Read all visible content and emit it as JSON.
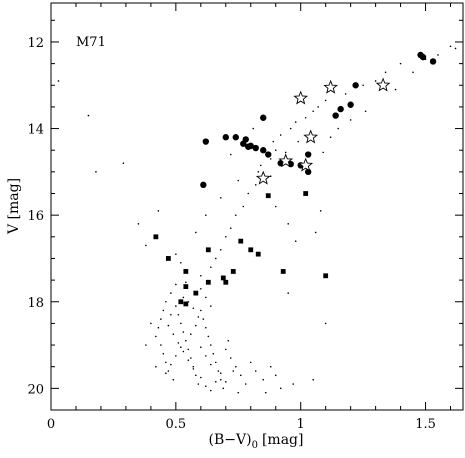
{
  "chart_data": {
    "type": "scatter",
    "title": "M71",
    "xlabel": "(B−V)",
    "xlabel_subscript": "0",
    "xlabel_unit": "[mag]",
    "ylabel": "V [mag]",
    "xlim": [
      0,
      1.65
    ],
    "ylim": [
      20.5,
      11.1
    ],
    "y_inverted": true,
    "grid": false,
    "x_ticks": [
      0,
      0.5,
      1,
      1.5
    ],
    "x_tick_labels": [
      "0",
      "0.5",
      "1",
      "1.5"
    ],
    "y_ticks": [
      12,
      14,
      16,
      18,
      20
    ],
    "y_tick_labels": [
      "12",
      "14",
      "16",
      "18",
      "20"
    ],
    "series": [
      {
        "marker": "circle",
        "points": [
          [
            1.48,
            12.3
          ],
          [
            1.49,
            12.35
          ],
          [
            1.53,
            12.45
          ],
          [
            1.22,
            13.0
          ],
          [
            1.2,
            13.45
          ],
          [
            1.16,
            13.55
          ],
          [
            1.14,
            13.7
          ],
          [
            0.85,
            13.75
          ],
          [
            0.62,
            14.3
          ],
          [
            0.7,
            14.2
          ],
          [
            0.74,
            14.2
          ],
          [
            0.77,
            14.35
          ],
          [
            0.78,
            14.25
          ],
          [
            0.79,
            14.42
          ],
          [
            0.8,
            14.4
          ],
          [
            0.82,
            14.45
          ],
          [
            0.85,
            14.5
          ],
          [
            0.87,
            14.6
          ],
          [
            0.92,
            14.8
          ],
          [
            0.96,
            14.82
          ],
          [
            1.0,
            14.85
          ],
          [
            1.03,
            14.6
          ],
          [
            1.03,
            15.0
          ],
          [
            0.61,
            15.3
          ]
        ]
      },
      {
        "marker": "star",
        "points": [
          [
            1.33,
            13.0
          ],
          [
            1.12,
            13.05
          ],
          [
            1.0,
            13.3
          ],
          [
            1.04,
            14.2
          ],
          [
            0.94,
            14.75
          ],
          [
            1.02,
            14.85
          ],
          [
            0.85,
            15.15
          ]
        ]
      },
      {
        "marker": "square",
        "points": [
          [
            1.02,
            15.5
          ],
          [
            0.87,
            15.55
          ],
          [
            0.42,
            16.5
          ],
          [
            0.76,
            16.6
          ],
          [
            0.63,
            16.8
          ],
          [
            0.8,
            16.8
          ],
          [
            0.83,
            16.9
          ],
          [
            0.47,
            17.0
          ],
          [
            0.54,
            17.3
          ],
          [
            0.93,
            17.3
          ],
          [
            0.73,
            17.3
          ],
          [
            1.1,
            17.4
          ],
          [
            0.69,
            17.45
          ],
          [
            0.63,
            17.55
          ],
          [
            0.7,
            17.55
          ],
          [
            0.54,
            17.65
          ],
          [
            0.58,
            17.8
          ],
          [
            0.52,
            18.0
          ],
          [
            0.54,
            18.05
          ]
        ]
      },
      {
        "marker": "dot",
        "points": [
          [
            0.03,
            12.9
          ],
          [
            0.15,
            13.7
          ],
          [
            0.18,
            15.0
          ],
          [
            0.29,
            14.8
          ],
          [
            1.6,
            12.1
          ],
          [
            1.62,
            12.15
          ],
          [
            1.4,
            12.5
          ],
          [
            1.34,
            12.7
          ],
          [
            1.3,
            12.9
          ],
          [
            1.25,
            13.0
          ],
          [
            1.18,
            13.2
          ],
          [
            1.1,
            13.35
          ],
          [
            1.07,
            13.5
          ],
          [
            1.05,
            13.6
          ],
          [
            1.02,
            13.75
          ],
          [
            0.98,
            13.85
          ],
          [
            0.96,
            14.0
          ],
          [
            0.92,
            14.15
          ],
          [
            0.89,
            14.3
          ],
          [
            0.9,
            14.5
          ],
          [
            0.94,
            14.55
          ],
          [
            0.88,
            14.7
          ],
          [
            0.84,
            14.85
          ],
          [
            0.83,
            15.0
          ],
          [
            0.88,
            15.1
          ],
          [
            0.82,
            15.3
          ],
          [
            0.79,
            15.5
          ],
          [
            0.77,
            15.8
          ],
          [
            0.74,
            16.0
          ],
          [
            0.72,
            16.3
          ],
          [
            0.7,
            16.5
          ],
          [
            0.68,
            16.8
          ],
          [
            0.66,
            17.0
          ],
          [
            0.64,
            17.2
          ],
          [
            0.6,
            17.4
          ],
          [
            0.9,
            15.8
          ],
          [
            0.95,
            16.2
          ],
          [
            1.08,
            15.9
          ],
          [
            0.98,
            16.6
          ],
          [
            1.06,
            16.4
          ],
          [
            0.43,
            15.9
          ],
          [
            0.38,
            16.7
          ],
          [
            0.5,
            16.9
          ],
          [
            0.52,
            17.1
          ],
          [
            0.58,
            16.4
          ],
          [
            0.62,
            16.0
          ],
          [
            0.68,
            15.6
          ],
          [
            0.75,
            15.2
          ],
          [
            1.12,
            14.2
          ],
          [
            1.15,
            14.0
          ],
          [
            1.2,
            13.8
          ],
          [
            1.26,
            13.6
          ],
          [
            1.38,
            13.1
          ],
          [
            1.45,
            12.7
          ],
          [
            1.5,
            12.4
          ],
          [
            1.55,
            12.3
          ],
          [
            0.81,
            14.0
          ],
          [
            0.72,
            14.6
          ],
          [
            0.99,
            14.3
          ],
          [
            1.09,
            14.55
          ],
          [
            0.5,
            17.6
          ],
          [
            0.48,
            17.8
          ],
          [
            0.46,
            18.0
          ],
          [
            0.45,
            18.2
          ],
          [
            0.44,
            18.4
          ],
          [
            0.43,
            18.6
          ],
          [
            0.42,
            18.8
          ],
          [
            0.44,
            19.0
          ],
          [
            0.45,
            19.2
          ],
          [
            0.46,
            19.4
          ],
          [
            0.47,
            19.6
          ],
          [
            0.49,
            19.8
          ],
          [
            0.5,
            18.1
          ],
          [
            0.51,
            18.3
          ],
          [
            0.52,
            18.5
          ],
          [
            0.53,
            18.7
          ],
          [
            0.54,
            18.9
          ],
          [
            0.55,
            19.1
          ],
          [
            0.56,
            19.3
          ],
          [
            0.57,
            19.5
          ],
          [
            0.58,
            19.7
          ],
          [
            0.59,
            19.9
          ],
          [
            0.6,
            18.2
          ],
          [
            0.61,
            18.4
          ],
          [
            0.62,
            18.6
          ],
          [
            0.63,
            18.8
          ],
          [
            0.64,
            19.0
          ],
          [
            0.65,
            19.2
          ],
          [
            0.66,
            19.4
          ],
          [
            0.67,
            19.6
          ],
          [
            0.68,
            19.8
          ],
          [
            0.69,
            20.0
          ],
          [
            0.7,
            19.1
          ],
          [
            0.72,
            19.3
          ],
          [
            0.74,
            19.5
          ],
          [
            0.76,
            19.7
          ],
          [
            0.78,
            19.9
          ],
          [
            0.71,
            18.9
          ],
          [
            0.73,
            19.6
          ],
          [
            0.75,
            20.1
          ],
          [
            0.8,
            19.4
          ],
          [
            0.82,
            19.6
          ],
          [
            0.85,
            19.8
          ],
          [
            0.88,
            19.5
          ],
          [
            0.9,
            19.7
          ],
          [
            0.53,
            17.9
          ],
          [
            0.55,
            18.0
          ],
          [
            0.57,
            18.15
          ],
          [
            0.59,
            18.35
          ],
          [
            0.48,
            18.3
          ],
          [
            0.47,
            18.55
          ],
          [
            0.49,
            18.75
          ],
          [
            0.51,
            18.95
          ],
          [
            0.53,
            19.15
          ],
          [
            0.55,
            19.35
          ],
          [
            0.57,
            19.55
          ],
          [
            0.6,
            19.75
          ],
          [
            0.62,
            19.95
          ],
          [
            0.64,
            20.05
          ],
          [
            0.66,
            19.85
          ],
          [
            0.54,
            17.55
          ],
          [
            0.6,
            17.7
          ],
          [
            0.62,
            17.9
          ],
          [
            0.64,
            18.1
          ],
          [
            0.58,
            18.55
          ],
          [
            0.56,
            18.75
          ],
          [
            0.52,
            19.05
          ],
          [
            0.5,
            19.25
          ],
          [
            0.48,
            19.45
          ],
          [
            0.46,
            19.65
          ],
          [
            0.6,
            19.05
          ],
          [
            0.62,
            19.25
          ],
          [
            0.64,
            19.45
          ],
          [
            0.68,
            19.65
          ],
          [
            0.7,
            19.85
          ],
          [
            0.4,
            18.5
          ],
          [
            0.38,
            19.0
          ],
          [
            0.42,
            19.5
          ],
          [
            0.97,
            19.9
          ],
          [
            1.05,
            19.8
          ],
          [
            0.92,
            20.0
          ],
          [
            0.86,
            20.1
          ],
          [
            0.95,
            17.8
          ],
          [
            1.1,
            18.5
          ],
          [
            0.35,
            16.2
          ]
        ]
      }
    ]
  }
}
